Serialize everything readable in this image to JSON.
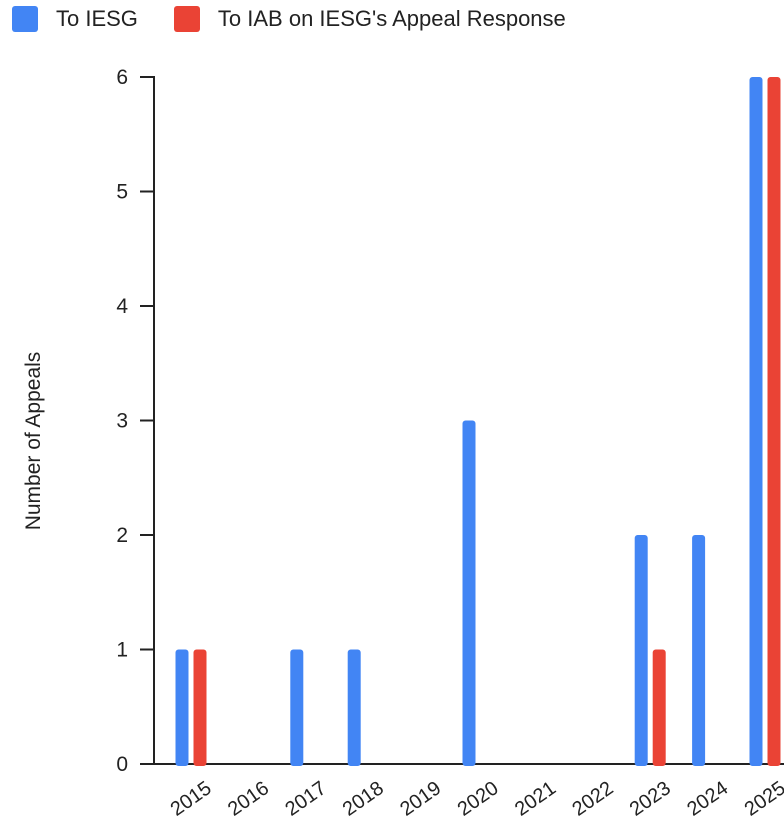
{
  "chart_data": {
    "type": "bar",
    "categories": [
      "2015",
      "2016",
      "2017",
      "2018",
      "2019",
      "2020",
      "2021",
      "2022",
      "2023",
      "2024",
      "2025"
    ],
    "series": [
      {
        "name": "To IESG",
        "color": "#4285f4",
        "values": [
          1,
          0,
          1,
          1,
          0,
          3,
          0,
          0,
          2,
          2,
          6
        ]
      },
      {
        "name": "To IAB on IESG's Appeal Response",
        "color": "#ea4335",
        "values": [
          1,
          0,
          0,
          0,
          0,
          0,
          0,
          0,
          1,
          0,
          6
        ]
      }
    ],
    "ylabel": "Number of Appeals",
    "xlabel": "",
    "ylim": [
      0,
      6
    ],
    "yticks": [
      0,
      1,
      2,
      3,
      4,
      5,
      6
    ],
    "legend_position": "top-left",
    "grid": false
  }
}
